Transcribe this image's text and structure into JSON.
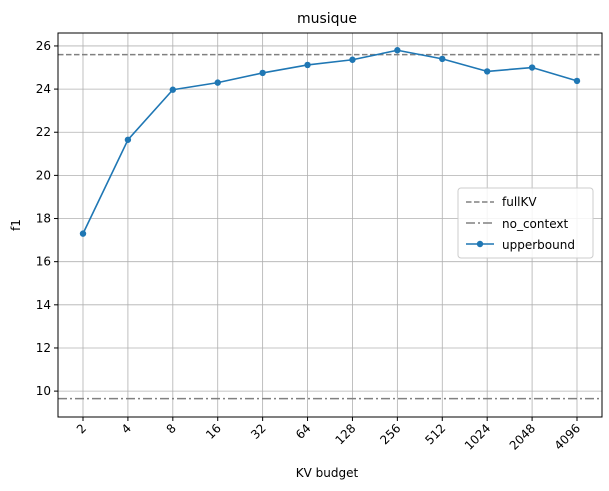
{
  "chart_data": {
    "type": "line",
    "title": "musique",
    "xlabel": "KV budget",
    "ylabel": "f1",
    "categories": [
      "2",
      "4",
      "8",
      "16",
      "32",
      "64",
      "128",
      "256",
      "512",
      "1024",
      "2048",
      "4096"
    ],
    "ylim": [
      8.8,
      26.6
    ],
    "yticks": [
      "10",
      "12",
      "14",
      "16",
      "18",
      "20",
      "22",
      "24",
      "26"
    ],
    "grid": true,
    "legend_position": "center-right",
    "series": [
      {
        "name": "upperbound",
        "style": "solid",
        "marker": "circle",
        "color": "#1f77b4",
        "values": [
          17.3,
          21.65,
          23.97,
          24.3,
          24.75,
          25.12,
          25.36,
          25.8,
          25.4,
          24.82,
          25.0,
          24.38
        ]
      }
    ],
    "reference_lines": [
      {
        "name": "fullKV",
        "style": "dashed",
        "color": "#808080",
        "value": 25.6
      },
      {
        "name": "no_context",
        "style": "dashdot",
        "color": "#808080",
        "value": 9.65
      }
    ],
    "legend": [
      "fullKV",
      "no_context",
      "upperbound"
    ]
  }
}
